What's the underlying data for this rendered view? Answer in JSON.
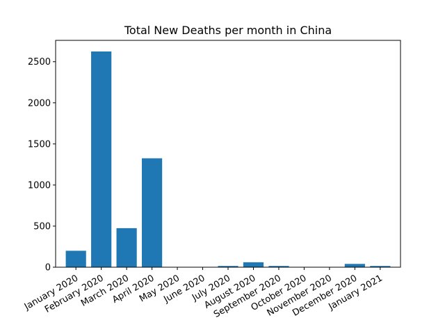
{
  "chart_data": {
    "type": "bar",
    "title": "Total New Deaths per month in China",
    "xlabel": "",
    "ylabel": "",
    "categories": [
      "January 2020",
      "February 2020",
      "March 2020",
      "April 2020",
      "May 2020",
      "June 2020",
      "July 2020",
      "August 2020",
      "September 2020",
      "October 2020",
      "November 2020",
      "December 2020",
      "January 2021"
    ],
    "values": [
      200,
      2625,
      475,
      1325,
      0,
      0,
      15,
      60,
      15,
      0,
      0,
      40,
      15
    ],
    "ylim": [
      0,
      2760
    ],
    "yticks": [
      0,
      500,
      1000,
      1500,
      2000,
      2500
    ],
    "bar_color": "#1f77b4",
    "grid": false,
    "legend": "none"
  }
}
